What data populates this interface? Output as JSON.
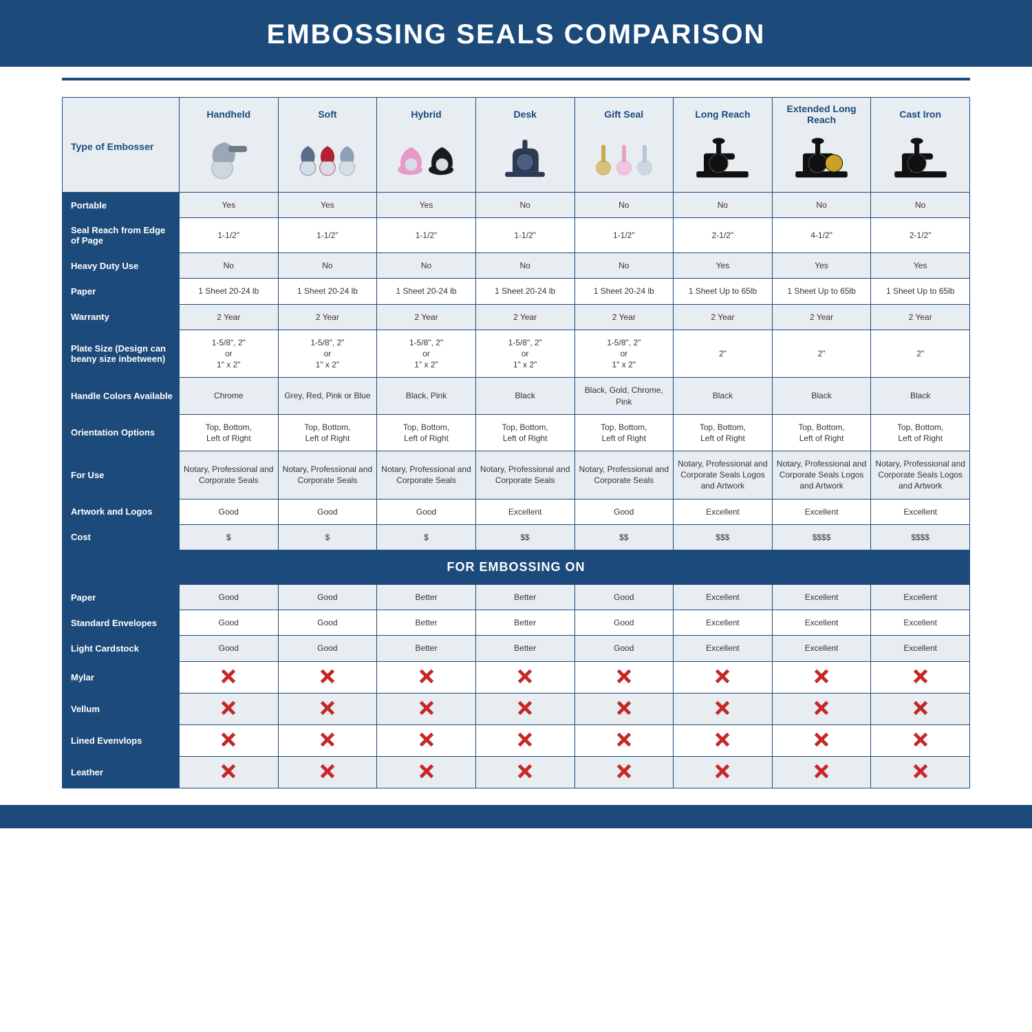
{
  "colors": {
    "brand": "#1c4a7a",
    "header_bg": "#e8edf2",
    "alt_row_bg": "#e8edf2",
    "text": "#333333",
    "x_red": "#c62828",
    "white": "#ffffff"
  },
  "title": "EMBOSSING SEALS COMPARISON",
  "type_of_embosser_label": "Type of Embosser",
  "columns": [
    "Handheld",
    "Soft",
    "Hybrid",
    "Desk",
    "Gift Seal",
    "Long Reach",
    "Extended Long Reach",
    "Cast Iron"
  ],
  "embosser_icons": {
    "Handheld": {
      "body": "#9aa7b5",
      "accent": "#6e7a88"
    },
    "Soft": {
      "body": "#5a6b8c",
      "accent": "#b22234",
      "accent2": "#8aa0b8"
    },
    "Hybrid": {
      "body": "#e89ac7",
      "accent": "#1a1a1a"
    },
    "Desk": {
      "body": "#2b3b55",
      "accent": "#4a5f80"
    },
    "Gift Seal": {
      "body": "#c9a94a",
      "accent": "#e8a2c8",
      "accent2": "#b8c6d6"
    },
    "Long Reach": {
      "body": "#111111",
      "accent": "#333333"
    },
    "Extended Long Reach": {
      "body": "#111111",
      "accent": "#c9a227"
    },
    "Cast Iron": {
      "body": "#111111",
      "accent": "#444444"
    }
  },
  "rows": [
    {
      "label": "Portable",
      "alt": true,
      "cells": [
        "Yes",
        "Yes",
        "Yes",
        "No",
        "No",
        "No",
        "No",
        "No"
      ]
    },
    {
      "label": "Seal Reach from Edge of Page",
      "alt": false,
      "cells": [
        "1-1/2\"",
        "1-1/2\"",
        "1-1/2\"",
        "1-1/2\"",
        "1-1/2\"",
        "2-1/2\"",
        "4-1/2\"",
        "2-1/2\""
      ]
    },
    {
      "label": "Heavy Duty Use",
      "alt": true,
      "cells": [
        "No",
        "No",
        "No",
        "No",
        "No",
        "Yes",
        "Yes",
        "Yes"
      ]
    },
    {
      "label": "Paper",
      "alt": false,
      "cells": [
        "1 Sheet 20-24 lb",
        "1 Sheet 20-24 lb",
        "1 Sheet 20-24 lb",
        "1 Sheet 20-24 lb",
        "1 Sheet 20-24 lb",
        "1 Sheet Up to 65lb",
        "1 Sheet Up to 65lb",
        "1 Sheet Up to 65lb"
      ]
    },
    {
      "label": "Warranty",
      "alt": true,
      "cells": [
        "2 Year",
        "2 Year",
        "2 Year",
        "2 Year",
        "2 Year",
        "2 Year",
        "2 Year",
        "2 Year"
      ]
    },
    {
      "label": "Plate Size (Design can beany size inbetween)",
      "alt": false,
      "cells": [
        "1-5/8\", 2\"\nor\n1\" x 2\"",
        "1-5/8\", 2\"\nor\n1\" x 2\"",
        "1-5/8\", 2\"\nor\n1\" x 2\"",
        "1-5/8\", 2\"\nor\n1\" x 2\"",
        "1-5/8\", 2\"\nor\n1\" x 2\"",
        "2\"",
        "2\"",
        "2\""
      ]
    },
    {
      "label": "Handle Colors Available",
      "alt": true,
      "cells": [
        "Chrome",
        "Grey, Red, Pink or Blue",
        "Black, Pink",
        "Black",
        "Black, Gold, Chrome, Pink",
        "Black",
        "Black",
        "Black"
      ]
    },
    {
      "label": "Orientation Options",
      "alt": false,
      "cells": [
        "Top, Bottom,\nLeft of Right",
        "Top, Bottom,\nLeft of Right",
        "Top, Bottom,\nLeft of Right",
        "Top, Bottom,\nLeft of Right",
        "Top, Bottom,\nLeft of Right",
        "Top, Bottom,\nLeft of Right",
        "Top, Bottom,\nLeft of Right",
        "Top, Bottom,\nLeft of Right"
      ]
    },
    {
      "label": "For Use",
      "alt": true,
      "cells": [
        "Notary, Professional and Corporate Seals",
        "Notary, Professional and Corporate Seals",
        "Notary, Professional and Corporate Seals",
        "Notary, Professional and Corporate Seals",
        "Notary, Professional and Corporate Seals",
        "Notary, Professional and Corporate Seals Logos and Artwork",
        "Notary, Professional and Corporate Seals Logos and Artwork",
        "Notary, Professional and Corporate Seals Logos and Artwork"
      ]
    },
    {
      "label": "Artwork and Logos",
      "alt": false,
      "cells": [
        "Good",
        "Good",
        "Good",
        "Excellent",
        "Good",
        "Excellent",
        "Excellent",
        "Excellent"
      ]
    },
    {
      "label": "Cost",
      "alt": true,
      "cells": [
        "$",
        "$",
        "$",
        "$$",
        "$$",
        "$$$",
        "$$$$",
        "$$$$"
      ]
    }
  ],
  "section_header": "FOR EMBOSSING ON",
  "embossing_rows": [
    {
      "label": "Paper",
      "alt": true,
      "cells": [
        "Good",
        "Good",
        "Better",
        "Better",
        "Good",
        "Excellent",
        "Excellent",
        "Excellent"
      ]
    },
    {
      "label": "Standard Envelopes",
      "alt": false,
      "cells": [
        "Good",
        "Good",
        "Better",
        "Better",
        "Good",
        "Excellent",
        "Excellent",
        "Excellent"
      ]
    },
    {
      "label": "Light Cardstock",
      "alt": true,
      "cells": [
        "Good",
        "Good",
        "Better",
        "Better",
        "Good",
        "Excellent",
        "Excellent",
        "Excellent"
      ]
    },
    {
      "label": "Mylar",
      "alt": false,
      "cells": [
        "X",
        "X",
        "X",
        "X",
        "X",
        "X",
        "X",
        "X"
      ]
    },
    {
      "label": "Vellum",
      "alt": true,
      "cells": [
        "X",
        "X",
        "X",
        "X",
        "X",
        "X",
        "X",
        "X"
      ]
    },
    {
      "label": "Lined Evenvlops",
      "alt": false,
      "cells": [
        "X",
        "X",
        "X",
        "X",
        "X",
        "X",
        "X",
        "X"
      ]
    },
    {
      "label": "Leather",
      "alt": true,
      "cells": [
        "X",
        "X",
        "X",
        "X",
        "X",
        "X",
        "X",
        "X"
      ]
    }
  ]
}
